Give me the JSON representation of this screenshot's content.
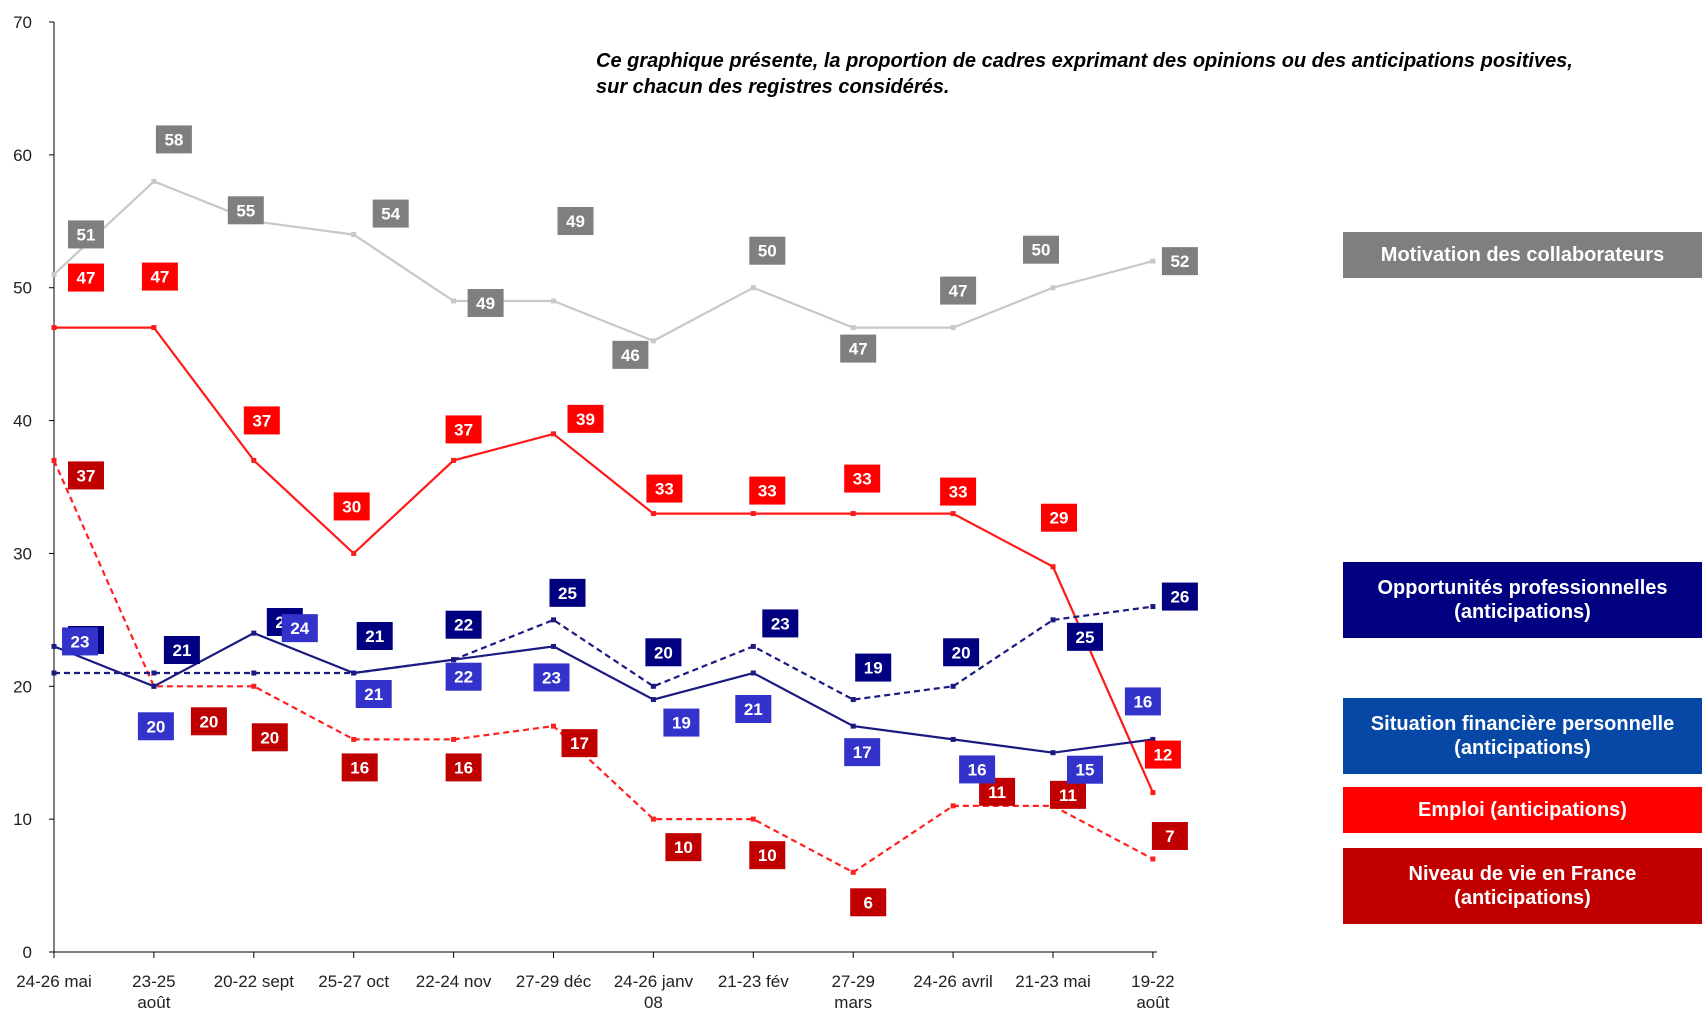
{
  "note": {
    "line1": "Ce graphique présente, la proportion de cadres exprimant des opinions ou des anticipations positives,",
    "line2": "sur chacun des registres considérés."
  },
  "legend": [
    {
      "id": "motivation",
      "line1": "Motivation des collaborateurs",
      "line2": "",
      "color": "#7f7f7f"
    },
    {
      "id": "opportunites",
      "line1": "Opportunités professionnelles",
      "line2": "(anticipations)",
      "color": "#000080"
    },
    {
      "id": "situation",
      "line1": "Situation financière personnelle",
      "line2": "(anticipations)",
      "color": "#0747a6"
    },
    {
      "id": "emploi",
      "line1": "Emploi (anticipations)",
      "line2": "",
      "color": "#ff0000"
    },
    {
      "id": "niveau",
      "line1": "Niveau de vie en France",
      "line2": "(anticipations)",
      "color": "#c00000"
    }
  ],
  "chart_data": {
    "type": "line",
    "categories": [
      [
        "24-26 mai"
      ],
      [
        "23-25",
        "août"
      ],
      [
        "20-22 sept"
      ],
      [
        "25-27 oct"
      ],
      [
        "22-24 nov"
      ],
      [
        "27-29 déc"
      ],
      [
        "24-26 janv",
        "08"
      ],
      [
        "21-23 fév"
      ],
      [
        "27-29",
        "mars"
      ],
      [
        "24-26 avril"
      ],
      [
        "21-23 mai"
      ],
      [
        "19-22",
        "août"
      ]
    ],
    "ylim": [
      0,
      70
    ],
    "yticks": [
      0,
      10,
      20,
      30,
      40,
      50,
      60,
      70
    ],
    "grid": false,
    "legend_position": "right",
    "series": [
      {
        "id": "motivation",
        "name": "Motivation des collaborateurs",
        "line_color": "#c8c8c8",
        "label_color": "#7f7f7f",
        "dashed": false,
        "values": [
          51,
          58,
          55,
          54,
          49,
          49,
          46,
          50,
          47,
          47,
          50,
          52
        ]
      },
      {
        "id": "emploi",
        "name": "Emploi (anticipations)",
        "line_color": "#ff1a1a",
        "label_color": "#ff0000",
        "dashed": false,
        "values": [
          47,
          47,
          37,
          30,
          37,
          39,
          33,
          33,
          33,
          33,
          29,
          12
        ]
      },
      {
        "id": "niveau",
        "name": "Niveau de vie en France (anticipations)",
        "line_color": "#ff2020",
        "label_color": "#c00000",
        "dashed": true,
        "values": [
          37,
          20,
          20,
          16,
          16,
          17,
          10,
          10,
          6,
          11,
          11,
          7
        ]
      },
      {
        "id": "opportunites",
        "name": "Opportunités professionnelles (anticipations)",
        "line_color": "#1a1a80",
        "label_color": "#000080",
        "dashed": true,
        "values": [
          21,
          21,
          21,
          21,
          22,
          25,
          20,
          23,
          19,
          20,
          25,
          26
        ]
      },
      {
        "id": "situation",
        "name": "Situation financière personnelle (anticipations)",
        "line_color": "#1a1a80",
        "label_color": "#3333cc",
        "dashed": false,
        "values": [
          23,
          20,
          24,
          21,
          22,
          23,
          19,
          21,
          17,
          16,
          15,
          16
        ]
      }
    ]
  }
}
